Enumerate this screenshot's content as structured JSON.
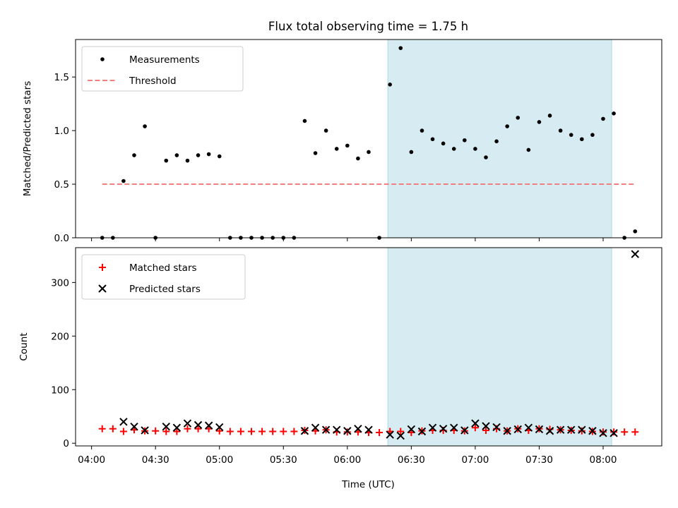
{
  "chart_data": {
    "title": "Flux total observing time = 1.75 h",
    "type": "scatter",
    "time_axis": {
      "label": "Time (UTC)",
      "tick_labels": [
        "04:00",
        "04:30",
        "05:00",
        "05:30",
        "06:00",
        "06:30",
        "07:00",
        "07:30",
        "08:00"
      ],
      "tick_minutes": [
        240,
        270,
        300,
        330,
        360,
        390,
        420,
        450,
        480
      ],
      "range_minutes": [
        232.5,
        507.5
      ]
    },
    "highlight_span": {
      "start": "06:19",
      "end": "08:04",
      "color": "#add8e6"
    },
    "panels": [
      {
        "type": "scatter",
        "ylabel": "Matched/Predicted stars",
        "ylim": [
          0,
          1.85
        ],
        "yticks": [
          0.0,
          0.5,
          1.0,
          1.5
        ],
        "ytick_labels": [
          "0.0",
          "0.5",
          "1.0",
          "1.5"
        ],
        "legend_position": "upper-left",
        "series": [
          {
            "name": "Measurements",
            "marker": "dot",
            "color": "#000000",
            "x": [
              "04:05",
              "04:10",
              "04:15",
              "04:20",
              "04:25",
              "04:30",
              "04:35",
              "04:40",
              "04:45",
              "04:50",
              "04:55",
              "05:00",
              "05:05",
              "05:10",
              "05:15",
              "05:20",
              "05:25",
              "05:30",
              "05:35",
              "05:40",
              "05:45",
              "05:50",
              "05:55",
              "06:00",
              "06:05",
              "06:10",
              "06:15",
              "06:20",
              "06:25",
              "06:30",
              "06:35",
              "06:40",
              "06:45",
              "06:50",
              "06:55",
              "07:00",
              "07:05",
              "07:10",
              "07:15",
              "07:20",
              "07:25",
              "07:30",
              "07:35",
              "07:40",
              "07:45",
              "07:50",
              "07:55",
              "08:00",
              "08:05",
              "08:10",
              "08:15"
            ],
            "y": [
              0,
              0,
              0.53,
              0.77,
              1.04,
              0,
              0.72,
              0.77,
              0.72,
              0.77,
              0.78,
              0.76,
              0,
              0,
              0,
              0,
              0,
              0,
              0,
              1.09,
              0.79,
              1.0,
              0.83,
              0.86,
              0.74,
              0.8,
              0,
              1.43,
              1.77,
              0.8,
              1.0,
              0.92,
              0.88,
              0.83,
              0.91,
              0.83,
              0.75,
              0.9,
              1.04,
              1.12,
              0.82,
              1.08,
              1.14,
              1.0,
              0.96,
              0.92,
              0.96,
              1.11,
              1.16,
              0,
              0.06
            ]
          },
          {
            "name": "Threshold",
            "marker": "dashed-line",
            "color": "#f08080",
            "x": [
              "04:05",
              "08:15"
            ],
            "y": [
              0.5,
              0.5
            ]
          }
        ]
      },
      {
        "type": "scatter",
        "ylabel": "Count",
        "ylim": [
          -5,
          365
        ],
        "yticks": [
          0,
          100,
          200,
          300
        ],
        "ytick_labels": [
          "0",
          "100",
          "200",
          "300"
        ],
        "legend_position": "upper-left",
        "series": [
          {
            "name": "Matched stars",
            "marker": "plus",
            "color": "#ff0000",
            "x": [
              "04:05",
              "04:10",
              "04:15",
              "04:20",
              "04:25",
              "04:30",
              "04:35",
              "04:40",
              "04:45",
              "04:50",
              "04:55",
              "05:00",
              "05:05",
              "05:10",
              "05:15",
              "05:20",
              "05:25",
              "05:30",
              "05:35",
              "05:40",
              "05:45",
              "05:50",
              "05:55",
              "06:00",
              "06:05",
              "06:10",
              "06:15",
              "06:20",
              "06:25",
              "06:30",
              "06:35",
              "06:40",
              "06:45",
              "06:50",
              "06:55",
              "07:00",
              "07:05",
              "07:10",
              "07:15",
              "07:20",
              "07:25",
              "07:30",
              "07:35",
              "07:40",
              "07:45",
              "07:50",
              "07:55",
              "08:00",
              "08:05",
              "08:10",
              "08:15"
            ],
            "y": [
              27,
              27,
              22,
              25,
              23,
              23,
              22,
              22,
              27,
              27,
              27,
              23,
              22,
              22,
              22,
              22,
              22,
              22,
              22,
              24,
              23,
              25,
              21,
              21,
              21,
              20,
              20,
              22,
              22,
              20,
              23,
              24,
              24,
              24,
              23,
              29,
              24,
              27,
              23,
              27,
              24,
              27,
              26,
              25,
              24,
              23,
              22,
              21,
              21,
              21,
              21
            ]
          },
          {
            "name": "Predicted stars",
            "marker": "x",
            "color": "#000000",
            "x": [
              "04:15",
              "04:20",
              "04:25",
              "04:35",
              "04:40",
              "04:45",
              "04:50",
              "04:55",
              "05:00",
              "05:40",
              "05:45",
              "05:50",
              "05:55",
              "06:00",
              "06:05",
              "06:10",
              "06:20",
              "06:25",
              "06:30",
              "06:35",
              "06:40",
              "06:45",
              "06:50",
              "06:55",
              "07:00",
              "07:05",
              "07:10",
              "07:15",
              "07:20",
              "07:25",
              "07:30",
              "07:35",
              "07:40",
              "07:45",
              "07:50",
              "07:55",
              "08:00",
              "08:05",
              "08:15"
            ],
            "y": [
              40,
              31,
              24,
              31,
              29,
              37,
              34,
              33,
              30,
              23,
              29,
              25,
              25,
              23,
              27,
              25,
              16,
              14,
              26,
              22,
              29,
              27,
              29,
              24,
              37,
              32,
              30,
              23,
              26,
              29,
              26,
              23,
              25,
              25,
              25,
              23,
              19,
              19,
              353
            ]
          }
        ]
      }
    ]
  }
}
